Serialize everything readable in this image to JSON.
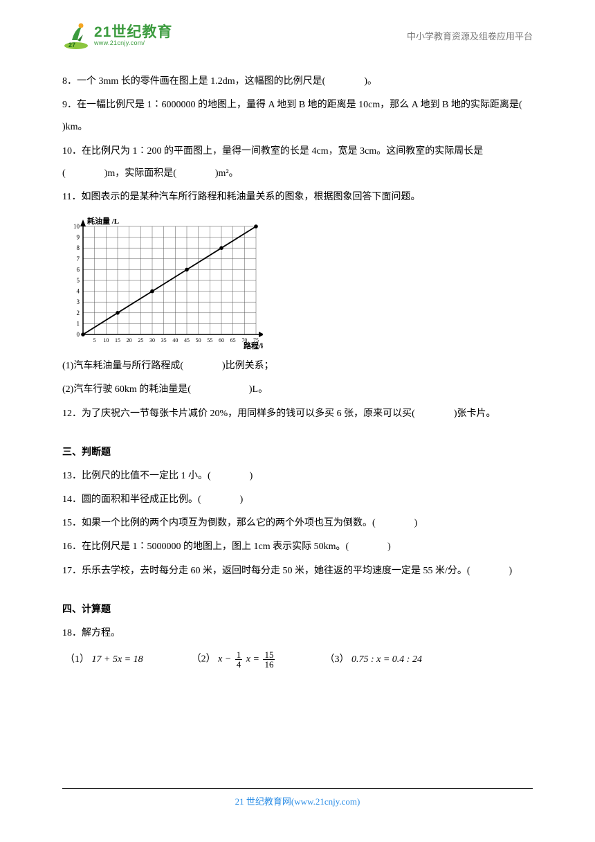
{
  "header": {
    "logo_cn": "21世纪教育",
    "logo_url": "www.21cnjy.com/",
    "right_text": "中小学教育资源及组卷应用平台"
  },
  "questions": {
    "q8": "8．一个 3mm 长的零件画在图上是 1.2dm，这幅图的比例尺是(　　　　)。",
    "q9": "9．在一幅比例尺是 1∶6000000 的地图上，量得 A 地到 B 地的距离是 10cm，那么 A 地到 B 地的实际距离是(　　　　　　  )km。",
    "q10": "10．在比例尺为 1∶200 的平面图上，量得一间教室的长是 4cm，宽是 3cm。这间教室的实际周长是(　　　　)m，实际面积是(　　　　)m²。",
    "q11_intro": "11．如图表示的是某种汽车所行路程和耗油量关系的图象，根据图象回答下面问题。",
    "q11_1": "(1)汽车耗油量与所行路程成(　　　　)比例关系；",
    "q11_2": "(2)汽车行驶 60km 的耗油量是(　　　　　　)L。",
    "q12": "12．为了庆祝六一节每张卡片减价 20%，用同样多的钱可以多买 6 张，原来可以买(　　　　)张卡片。"
  },
  "chart": {
    "y_label": "耗油量 /L",
    "x_label": "路程/km",
    "y_ticks": [
      0,
      1,
      2,
      3,
      4,
      5,
      6,
      7,
      8,
      9,
      10
    ],
    "x_ticks": [
      5,
      10,
      15,
      20,
      25,
      30,
      35,
      40,
      45,
      50,
      55,
      60,
      65,
      70,
      75
    ],
    "points_x": [
      0,
      15,
      30,
      45,
      60,
      75
    ],
    "points_y": [
      0,
      2,
      4,
      6,
      8,
      10
    ],
    "axis_color": "#000000",
    "grid_color": "#555555",
    "point_color": "#000000",
    "line_color": "#000000",
    "background": "#ffffff",
    "y_max": 10,
    "x_max": 75,
    "label_fontsize": 11,
    "tick_fontsize": 9
  },
  "section3": {
    "title": "三、判断题",
    "q13": "13．比例尺的比值不一定比 1 小。(　　　　)",
    "q14": "14．圆的面积和半径成正比例。(　　　　)",
    "q15": "15．如果一个比例的两个内项互为倒数，那么它的两个外项也互为倒数。(　　　　)",
    "q16": "16．在比例尺是 1∶5000000 的地图上，图上 1cm 表示实际 50km。(　　　　)",
    "q17": "17．乐乐去学校，去时每分走 60 米，返回时每分走 50 米，她往返的平均速度一定是 55 米/分。(　　　　)"
  },
  "section4": {
    "title": "四、计算题",
    "q18": "18．解方程。",
    "eq1_label": "（1）",
    "eq1": "17 + 5x = 18",
    "eq2_label": "（2）",
    "eq2_lhs_pre": "x − ",
    "eq2_frac1_n": "1",
    "eq2_frac1_d": "4",
    "eq2_mid": " x = ",
    "eq2_frac2_n": "15",
    "eq2_frac2_d": "16",
    "eq3_label": "（3）",
    "eq3": "0.75 : x = 0.4 : 24"
  },
  "footer": {
    "text_pre": "21 世纪教育网(",
    "domain": "www.21cnjy.com",
    "text_post": ")"
  }
}
